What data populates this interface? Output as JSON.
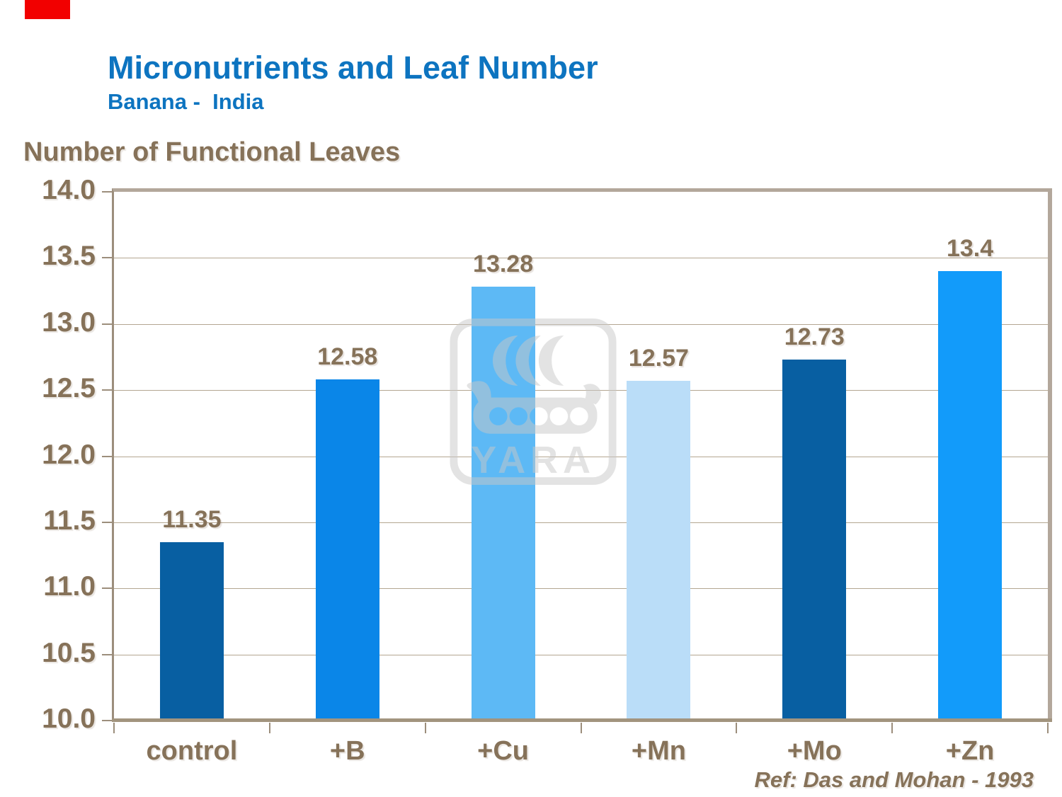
{
  "page": {
    "background": "#ffffff"
  },
  "accent": {
    "red_marker_color": "#f20000"
  },
  "header": {
    "title": "Micronutrients and Leaf Number",
    "subtitle": "Banana -  India",
    "title_color": "#0d74c0"
  },
  "axis_heading": "Number of Functional Leaves",
  "watermark": {
    "name": "yara-logo",
    "text": "YARA",
    "color": "#c8c8c8"
  },
  "footer": {
    "reference": "Ref: Das and Mohan - 1993"
  },
  "chart_data": {
    "type": "bar",
    "title": "Micronutrients and Leaf Number",
    "subtitle": "Banana - India",
    "xlabel": "",
    "ylabel": "Number of Functional Leaves",
    "categories": [
      "control",
      "+B",
      "+Cu",
      "+Mn",
      "+Mo",
      "+Zn"
    ],
    "values": [
      11.35,
      12.58,
      13.28,
      12.57,
      12.73,
      13.4
    ],
    "value_labels": [
      "11.35",
      "12.58",
      "13.28",
      "12.57",
      "12.73",
      "13.4"
    ],
    "bar_colors": [
      "#085fa2",
      "#0a86e8",
      "#5db9f5",
      "#baddf8",
      "#085fa2",
      "#129bfa"
    ],
    "ylim": [
      10.0,
      14.0
    ],
    "ytick_step": 0.5,
    "yticks": [
      "14.0",
      "13.5",
      "13.0",
      "12.5",
      "12.0",
      "11.5",
      "11.0",
      "10.5",
      "10.0"
    ],
    "grid": true,
    "legend": false,
    "annotation": "Ref: Das and Mohan - 1993",
    "text_color": "#867259",
    "grid_color": "#b4a691",
    "axis_color": "#9c8e7c",
    "border_color": "#b3a79b"
  }
}
